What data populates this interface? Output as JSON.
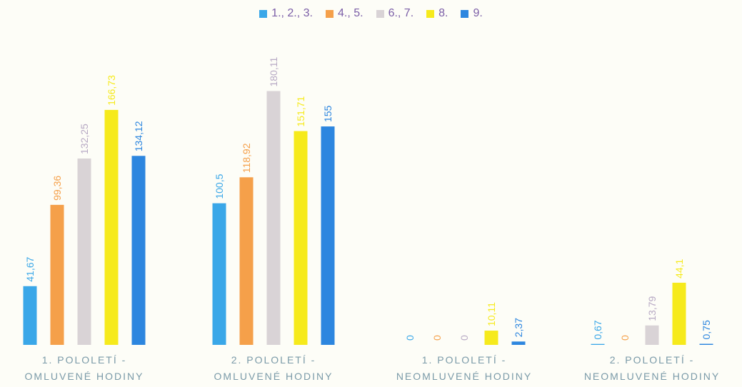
{
  "chart_data": {
    "type": "bar",
    "categories": [
      [
        "1. POLOLETÍ -",
        "OMLUVENÉ HODINY"
      ],
      [
        "2. POLOLETÍ -",
        "OMLUVENÉ HODINY"
      ],
      [
        "1. POLOLETÍ -",
        "NEOMLUVENÉ HODINY"
      ],
      [
        "2. POLOLETÍ -",
        "NEOMLUVENÉ HODINY"
      ]
    ],
    "series": [
      {
        "name": "1., 2., 3.",
        "color": "#3aa7e8",
        "values": [
          41.67,
          100.5,
          0,
          0.67
        ],
        "labels": [
          "41,67",
          "100,5",
          "0",
          "0,67"
        ]
      },
      {
        "name": "4., 5.",
        "color": "#f5a04a",
        "values": [
          99.36,
          118.92,
          0,
          0
        ],
        "labels": [
          "99,36",
          "118,92",
          "0",
          "0"
        ]
      },
      {
        "name": "6., 7.",
        "color": "#d9d3d6",
        "values": [
          132.25,
          180.11,
          0,
          13.79
        ],
        "labels": [
          "132,25",
          "180,11",
          "0",
          "13,79"
        ]
      },
      {
        "name": "8.",
        "color": "#f6ea1c",
        "values": [
          166.73,
          151.71,
          10.11,
          44.1
        ],
        "labels": [
          "166,73",
          "151,71",
          "10,11",
          "44,1"
        ]
      },
      {
        "name": "9.",
        "color": "#2d86df",
        "values": [
          134.12,
          155,
          2.37,
          0.75
        ],
        "labels": [
          "134,12",
          "155",
          "2,37",
          "0,75"
        ]
      }
    ],
    "ylim": [
      0,
      190
    ],
    "legend_position": "top-center",
    "grid": false
  }
}
